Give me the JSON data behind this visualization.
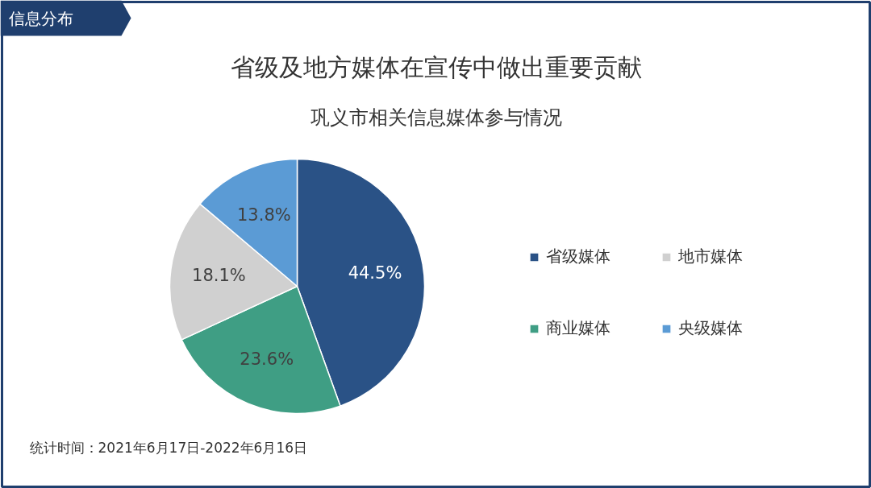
{
  "chart_data": {
    "type": "pie",
    "title": "省级及地方媒体在宣传中做出重要贡献",
    "subtitle": "巩义市相关信息媒体参与情况",
    "categories": [
      "省级媒体",
      "商业媒体",
      "地市媒体",
      "央级媒体"
    ],
    "values": [
      44.5,
      23.6,
      18.1,
      13.8
    ],
    "colors": [
      "#2a5286",
      "#3f9e84",
      "#d0d0d0",
      "#5b9bd5"
    ],
    "value_labels": [
      "44.5%",
      "23.6%",
      "18.1%",
      "13.8%"
    ],
    "legend": "right",
    "annotations": [
      "信息分布",
      "统计时间：2021年6月17日-2022年6月16日"
    ]
  }
}
